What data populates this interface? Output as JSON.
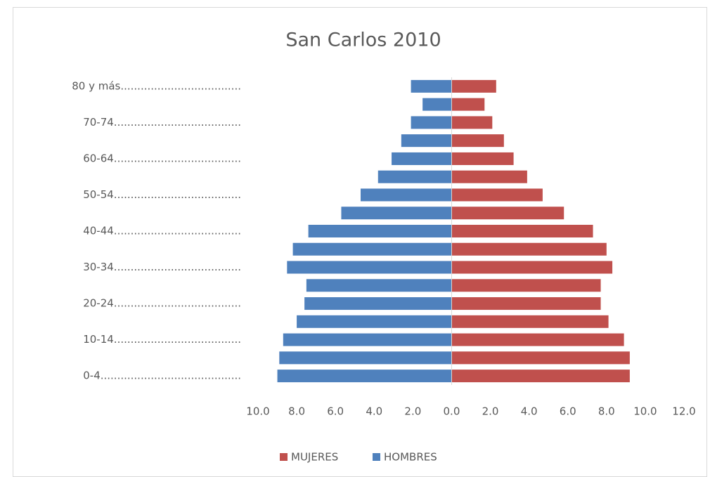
{
  "chart_data": {
    "type": "pyramid",
    "title": "San Carlos 2010",
    "categories": [
      "0-4..........................................",
      null,
      "10-14......................................",
      null,
      "20-24......................................",
      null,
      "30-34......................................",
      null,
      "40-44......................................",
      null,
      "50-54......................................",
      null,
      "60-64......................................",
      null,
      "70-74......................................",
      null,
      "80 y más...................................."
    ],
    "series": [
      {
        "name": "MUJERES",
        "color": "#c0504d",
        "values": [
          9.2,
          9.2,
          8.9,
          8.1,
          7.7,
          7.7,
          8.3,
          8.0,
          7.3,
          5.8,
          4.7,
          3.9,
          3.2,
          2.7,
          2.1,
          1.7,
          2.3
        ]
      },
      {
        "name": "HOMBRES",
        "color": "#4f81bd",
        "values": [
          -9.0,
          -8.9,
          -8.7,
          -8.0,
          -7.6,
          -7.5,
          -8.5,
          -8.2,
          -7.4,
          -5.7,
          -4.7,
          -3.8,
          -3.1,
          -2.6,
          -2.1,
          -1.5,
          -2.1
        ]
      }
    ],
    "xlim": [
      -10,
      12
    ],
    "xticks": [
      {
        "value": -10,
        "label": "10.0"
      },
      {
        "value": -8,
        "label": "8.0"
      },
      {
        "value": -6,
        "label": "6.0"
      },
      {
        "value": -4,
        "label": "4.0"
      },
      {
        "value": -2,
        "label": "2.0"
      },
      {
        "value": 0,
        "label": "0.0"
      },
      {
        "value": 2,
        "label": "2.0"
      },
      {
        "value": 4,
        "label": "4.0"
      },
      {
        "value": 6,
        "label": "6.0"
      },
      {
        "value": 8,
        "label": "8.0"
      },
      {
        "value": 10,
        "label": "10.0"
      },
      {
        "value": 12,
        "label": "12.0"
      }
    ],
    "grid": false,
    "legend": "bottom"
  }
}
